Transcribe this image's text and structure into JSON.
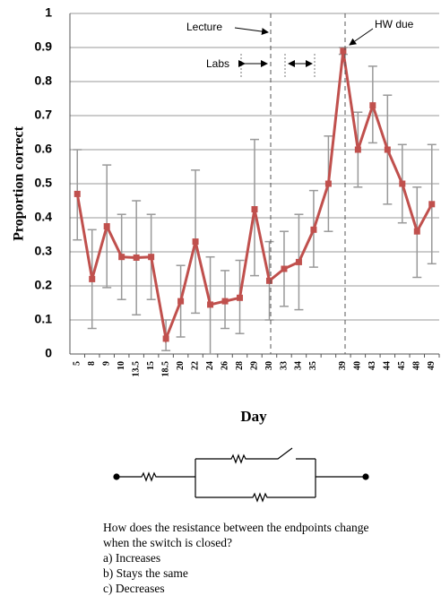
{
  "chart_data": {
    "type": "line",
    "y_label": "Proportion correct",
    "x_label": "Day",
    "categories": [
      "5",
      "8",
      "9",
      "10",
      "13.5",
      "15",
      "18.5",
      "20",
      "22",
      "24",
      "26",
      "28",
      "29",
      "30",
      "33",
      "34",
      "35",
      null,
      "39",
      "40",
      "43",
      "44",
      "45",
      "48",
      "49"
    ],
    "series": [
      {
        "name": "Proportion correct",
        "color": "#c0504d",
        "values": [
          0.47,
          0.22,
          0.375,
          0.285,
          0.283,
          0.285,
          0.045,
          0.155,
          0.33,
          0.145,
          0.155,
          0.165,
          0.425,
          0.215,
          0.25,
          0.27,
          0.365,
          0.5,
          0.89,
          0.6,
          0.73,
          0.6,
          0.5,
          0.36,
          0.44
        ],
        "lower": [
          0.335,
          0.075,
          0.195,
          0.16,
          0.115,
          0.16,
          0.01,
          0.05,
          0.12,
          0,
          0.075,
          0.06,
          0.23,
          0.1,
          0.14,
          0.13,
          0.255,
          0.36,
          0.88,
          0.49,
          0.62,
          0.44,
          0.385,
          0.225,
          0.265
        ],
        "upper": [
          0.6,
          0.365,
          0.555,
          0.41,
          0.45,
          0.41,
          0.1,
          0.26,
          0.54,
          0.285,
          0.245,
          0.275,
          0.63,
          0.33,
          0.36,
          0.41,
          0.48,
          0.64,
          0.9,
          0.71,
          0.845,
          0.76,
          0.615,
          0.49,
          0.615
        ]
      }
    ],
    "ylim": [
      0,
      1
    ],
    "yticks": [
      0,
      0.1,
      0.2,
      0.3,
      0.4,
      0.5,
      0.6,
      0.7,
      0.8,
      0.9,
      1
    ],
    "grid": true,
    "annotations": [
      "Lecture",
      "Labs",
      "HW due"
    ]
  },
  "question": {
    "text": "How does the resistance between the endpoints change when the switch is closed?",
    "options": [
      "a)  Increases",
      "b)  Stays the same",
      "c)  Decreases"
    ]
  }
}
